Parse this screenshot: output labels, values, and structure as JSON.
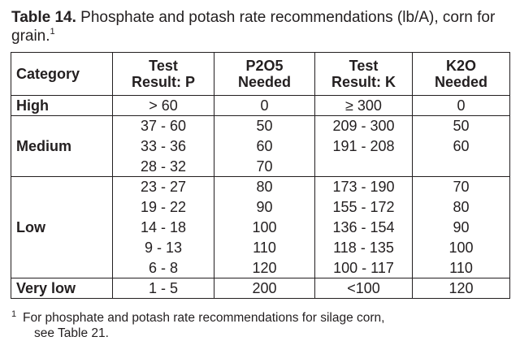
{
  "caption": {
    "label": "Table 14.",
    "text": " Phosphate and potash rate recommendations (lb/A), corn for grain.",
    "footnote_marker": "1"
  },
  "table": {
    "headers": {
      "category": "Category",
      "test_p_1": "Test",
      "test_p_2": "Result: P",
      "p2o5_1": "P2O5",
      "p2o5_2": "Needed",
      "test_k_1": "Test",
      "test_k_2": "Result: K",
      "k2o_1": "K2O",
      "k2o_2": "Needed"
    },
    "groups": [
      {
        "category": "High",
        "rows": [
          {
            "test_p": "> 60",
            "p2o5": "0",
            "test_k": "≥ 300",
            "k2o": "0"
          }
        ]
      },
      {
        "category": "Medium",
        "rows": [
          {
            "test_p": "37 - 60",
            "p2o5": "50",
            "test_k": "209 - 300",
            "k2o": "50"
          },
          {
            "test_p": "33 - 36",
            "p2o5": "60",
            "test_k": "191 - 208",
            "k2o": "60"
          },
          {
            "test_p": "28 - 32",
            "p2o5": "70",
            "test_k": "",
            "k2o": ""
          }
        ]
      },
      {
        "category": "Low",
        "rows": [
          {
            "test_p": "23 - 27",
            "p2o5": "80",
            "test_k": "173 - 190",
            "k2o": "70"
          },
          {
            "test_p": "19 - 22",
            "p2o5": "90",
            "test_k": "155 - 172",
            "k2o": "80"
          },
          {
            "test_p": "14 - 18",
            "p2o5": "100",
            "test_k": "136 - 154",
            "k2o": "90"
          },
          {
            "test_p": "9 - 13",
            "p2o5": "110",
            "test_k": "118 - 135",
            "k2o": "100"
          },
          {
            "test_p": "6 - 8",
            "p2o5": "120",
            "test_k": "100 - 117",
            "k2o": "110"
          }
        ]
      },
      {
        "category": "Very low",
        "rows": [
          {
            "test_p": "1 - 5",
            "p2o5": "200",
            "test_k": "<100",
            "k2o": "120"
          }
        ]
      }
    ]
  },
  "footnote": {
    "marker": "1",
    "line1": "For phosphate and potash rate recommendations for silage corn,",
    "line2": "see Table 21."
  }
}
